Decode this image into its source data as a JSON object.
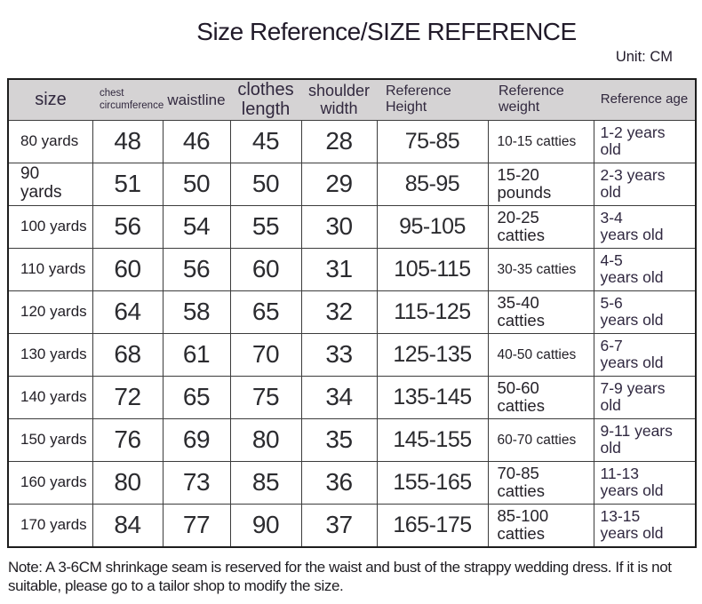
{
  "title": "Size Reference/SIZE REFERENCE",
  "unit_label": "Unit: CM",
  "note": "Note: A 3-6CM shrinkage seam is reserved for the waist and bust of the strappy wedding dress. If it is not suitable, please go to a tailor shop to modify the size.",
  "colors": {
    "header_bg": "#d5d3d4",
    "outer_border": "#1d1d1d",
    "grid_line": "#3c3c3c",
    "text": "#2a2730"
  },
  "table": {
    "columns": [
      {
        "key": "size",
        "label": "size"
      },
      {
        "key": "chest-circumference",
        "label": "chest\ncircumference"
      },
      {
        "key": "waistline",
        "label": "waistline"
      },
      {
        "key": "clothes-length",
        "label": "clothes\nlength"
      },
      {
        "key": "shoulder-width",
        "label": "shoulder\nwidth"
      },
      {
        "key": "reference-height",
        "label": "Reference\nHeight"
      },
      {
        "key": "reference-weight",
        "label": "Reference\nweight"
      },
      {
        "key": "reference-age",
        "label": "Reference age"
      }
    ],
    "rows": [
      [
        "80 yards",
        "48",
        "46",
        "45",
        "28",
        "75-85",
        "10-15 catties",
        "1-2 years\nold"
      ],
      [
        "90\nyards",
        "51",
        "50",
        "50",
        "29",
        "85-95",
        "15-20\npounds",
        "2-3 years\nold"
      ],
      [
        "100 yards",
        "56",
        "54",
        "55",
        "30",
        "95-105",
        "20-25\ncatties",
        "3-4\nyears old"
      ],
      [
        "110 yards",
        "60",
        "56",
        "60",
        "31",
        "105-115",
        "30-35 catties",
        "4-5\nyears old"
      ],
      [
        "120 yards",
        "64",
        "58",
        "65",
        "32",
        "115-125",
        "35-40\ncatties",
        "5-6\nyears old"
      ],
      [
        "130 yards",
        "68",
        "61",
        "70",
        "33",
        "125-135",
        "40-50 catties",
        "6-7\nyears old"
      ],
      [
        "140 yards",
        "72",
        "65",
        "75",
        "34",
        "135-145",
        "50-60\ncatties",
        "7-9 years\nold"
      ],
      [
        "150 yards",
        "76",
        "69",
        "80",
        "35",
        "145-155",
        "60-70 catties",
        "9-11 years\nold"
      ],
      [
        "160 yards",
        "80",
        "73",
        "85",
        "36",
        "155-165",
        "70-85\ncatties",
        "11-13\nyears old"
      ],
      [
        "170 yards",
        "84",
        "77",
        "90",
        "37",
        "165-175",
        "85-100\ncatties",
        "13-15\nyears old"
      ]
    ]
  },
  "chart_data": {
    "type": "table",
    "title": "Size Reference/SIZE REFERENCE",
    "unit": "CM",
    "columns": [
      "size",
      "chest circumference",
      "waistline",
      "clothes length",
      "shoulder width",
      "Reference Height",
      "Reference weight",
      "Reference age"
    ],
    "rows": [
      {
        "size": "80 yards",
        "chest_circumference": 48,
        "waistline": 46,
        "clothes_length": 45,
        "shoulder_width": 28,
        "reference_height": "75-85",
        "reference_weight": "10-15 catties",
        "reference_age": "1-2 years old"
      },
      {
        "size": "90 yards",
        "chest_circumference": 51,
        "waistline": 50,
        "clothes_length": 50,
        "shoulder_width": 29,
        "reference_height": "85-95",
        "reference_weight": "15-20 pounds",
        "reference_age": "2-3 years old"
      },
      {
        "size": "100 yards",
        "chest_circumference": 56,
        "waistline": 54,
        "clothes_length": 55,
        "shoulder_width": 30,
        "reference_height": "95-105",
        "reference_weight": "20-25 catties",
        "reference_age": "3-4 years old"
      },
      {
        "size": "110 yards",
        "chest_circumference": 60,
        "waistline": 56,
        "clothes_length": 60,
        "shoulder_width": 31,
        "reference_height": "105-115",
        "reference_weight": "30-35 catties",
        "reference_age": "4-5 years old"
      },
      {
        "size": "120 yards",
        "chest_circumference": 64,
        "waistline": 58,
        "clothes_length": 65,
        "shoulder_width": 32,
        "reference_height": "115-125",
        "reference_weight": "35-40 catties",
        "reference_age": "5-6 years old"
      },
      {
        "size": "130 yards",
        "chest_circumference": 68,
        "waistline": 61,
        "clothes_length": 70,
        "shoulder_width": 33,
        "reference_height": "125-135",
        "reference_weight": "40-50 catties",
        "reference_age": "6-7 years old"
      },
      {
        "size": "140 yards",
        "chest_circumference": 72,
        "waistline": 65,
        "clothes_length": 75,
        "shoulder_width": 34,
        "reference_height": "135-145",
        "reference_weight": "50-60 catties",
        "reference_age": "7-9 years old"
      },
      {
        "size": "150 yards",
        "chest_circumference": 76,
        "waistline": 69,
        "clothes_length": 80,
        "shoulder_width": 35,
        "reference_height": "145-155",
        "reference_weight": "60-70 catties",
        "reference_age": "9-11 years old"
      },
      {
        "size": "160 yards",
        "chest_circumference": 80,
        "waistline": 73,
        "clothes_length": 85,
        "shoulder_width": 36,
        "reference_height": "155-165",
        "reference_weight": "70-85 catties",
        "reference_age": "11-13 years old"
      },
      {
        "size": "170 yards",
        "chest_circumference": 84,
        "waistline": 77,
        "clothes_length": 90,
        "shoulder_width": 37,
        "reference_height": "165-175",
        "reference_weight": "85-100 catties",
        "reference_age": "13-15 years old"
      }
    ]
  }
}
